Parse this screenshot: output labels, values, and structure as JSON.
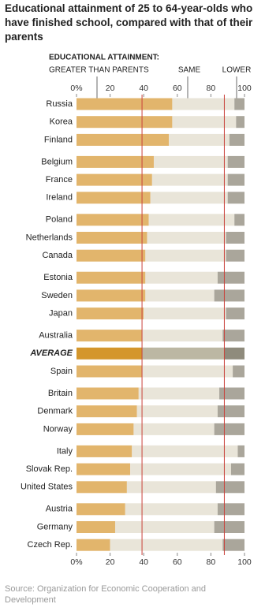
{
  "chart_data": {
    "type": "stacked_bar_horizontal",
    "title": "Educational attainment of 25 to 64-year-olds who have finished school, compared with that of their parents",
    "legend_title": "EDUCATIONAL ATTAINMENT:",
    "source": "Source: Organization for Economic Cooperation and Development",
    "categories": [
      "Russia",
      "Korea",
      "Finland",
      "Belgium",
      "France",
      "Ireland",
      "Poland",
      "Netherlands",
      "Canada",
      "Estonia",
      "Sweden",
      "Japan",
      "Australia",
      "AVERAGE",
      "Spain",
      "Britain",
      "Denmark",
      "Norway",
      "Italy",
      "Slovak Rep.",
      "United States",
      "Austria",
      "Germany",
      "Czech Rep."
    ],
    "highlight_color": "#c0392b",
    "series": [
      {
        "name": "GREATER THAN PARENTS",
        "color": "#e2b56c",
        "highlight_color": "#d4962c",
        "values": [
          57,
          57,
          55,
          46,
          45,
          44,
          43,
          42,
          41,
          41,
          41,
          40,
          39,
          39,
          39,
          37,
          36,
          34,
          33,
          32,
          30,
          29,
          23,
          20
        ]
      },
      {
        "name": "SAME",
        "color": "#e9e5d9",
        "highlight_color": "#bcb7a3",
        "values": [
          37,
          38,
          36,
          44,
          45,
          46,
          51,
          47,
          48,
          43,
          41,
          49,
          48,
          49,
          54,
          48,
          48,
          48,
          63,
          60,
          53,
          55,
          59,
          67
        ]
      },
      {
        "name": "LOWER",
        "color": "#aaa69b",
        "highlight_color": "#8f8b7c",
        "values": [
          6,
          5,
          9,
          10,
          10,
          10,
          6,
          11,
          11,
          16,
          18,
          11,
          13,
          12,
          7,
          15,
          16,
          18,
          4,
          8,
          17,
          16,
          18,
          13
        ]
      }
    ],
    "xlim": [
      0,
      100
    ],
    "xticks": [
      {
        "value": 0,
        "label": "0%"
      },
      20,
      40,
      60,
      80,
      100
    ],
    "reference_color": "#c9413a"
  }
}
